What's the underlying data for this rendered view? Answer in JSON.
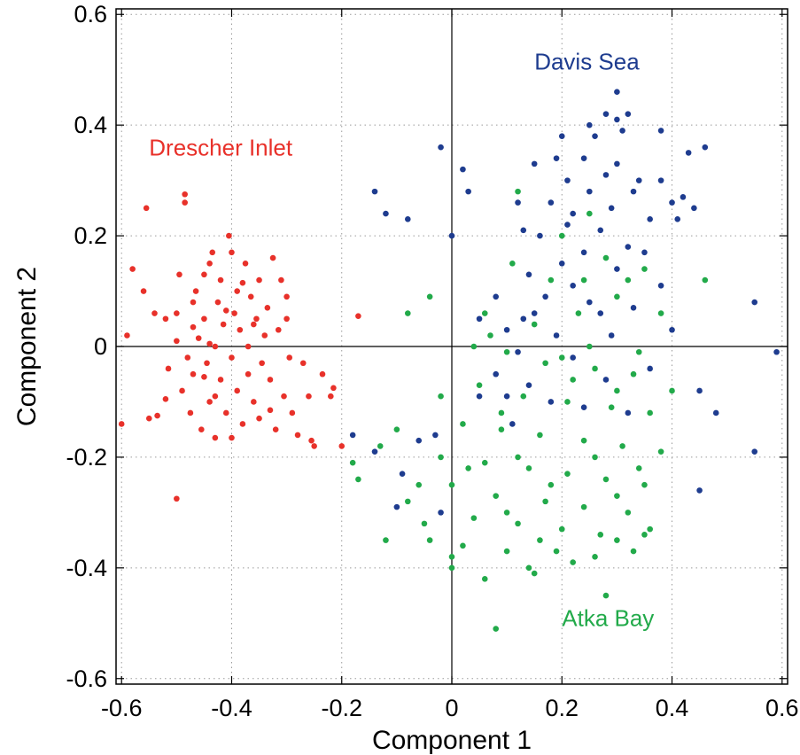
{
  "chart_data": {
    "type": "scatter",
    "xlabel": "Component 1",
    "ylabel": "Component 2",
    "xlim": [
      -0.61,
      0.61
    ],
    "ylim": [
      -0.61,
      0.61
    ],
    "x_ticks": [
      "-0.6",
      "-0.4",
      "-0.2",
      "0",
      "0.2",
      "0.4",
      "0.6"
    ],
    "y_ticks": [
      "0.6",
      "0.4",
      "0.2",
      "0",
      "-0.2",
      "-0.4",
      "-0.6"
    ],
    "x_tick_values": [
      -0.6,
      -0.4,
      -0.2,
      0,
      0.2,
      0.4,
      0.6
    ],
    "y_tick_values": [
      0.6,
      0.4,
      0.2,
      0,
      -0.2,
      -0.4,
      -0.6
    ],
    "grid": true,
    "grid_style": "dotted",
    "zero_lines": true,
    "series": [
      {
        "name": "Drescher Inlet",
        "color": "#e8312a",
        "label_pos": [
          -0.55,
          0.345
        ],
        "points": [
          [
            -0.6,
            -0.14
          ],
          [
            -0.59,
            0.02
          ],
          [
            -0.58,
            0.14
          ],
          [
            -0.56,
            0.1
          ],
          [
            -0.555,
            0.25
          ],
          [
            -0.55,
            -0.13
          ],
          [
            -0.535,
            -0.125
          ],
          [
            -0.52,
            0.05
          ],
          [
            -0.515,
            -0.04
          ],
          [
            -0.5,
            0.01
          ],
          [
            -0.5,
            0.06
          ],
          [
            -0.5,
            -0.275
          ],
          [
            -0.495,
            0.13
          ],
          [
            -0.49,
            -0.08
          ],
          [
            -0.485,
            0.275
          ],
          [
            -0.485,
            0.26
          ],
          [
            -0.48,
            -0.02
          ],
          [
            -0.475,
            -0.12
          ],
          [
            -0.47,
            0.08
          ],
          [
            -0.47,
            -0.05
          ],
          [
            -0.465,
            0.1
          ],
          [
            -0.46,
            0.015
          ],
          [
            -0.455,
            -0.15
          ],
          [
            -0.45,
            0.05
          ],
          [
            -0.45,
            0.13
          ],
          [
            -0.445,
            -0.03
          ],
          [
            -0.44,
            0.15
          ],
          [
            -0.44,
            -0.1
          ],
          [
            -0.435,
            0.17
          ],
          [
            -0.43,
            0.0
          ],
          [
            -0.43,
            -0.165
          ],
          [
            -0.425,
            0.08
          ],
          [
            -0.42,
            0.12
          ],
          [
            -0.42,
            -0.06
          ],
          [
            -0.415,
            0.04
          ],
          [
            -0.41,
            -0.12
          ],
          [
            -0.405,
            0.2
          ],
          [
            -0.4,
            0.17
          ],
          [
            -0.4,
            -0.02
          ],
          [
            -0.4,
            -0.165
          ],
          [
            -0.395,
            0.06
          ],
          [
            -0.39,
            0.1
          ],
          [
            -0.39,
            -0.08
          ],
          [
            -0.385,
            0.03
          ],
          [
            -0.38,
            -0.14
          ],
          [
            -0.375,
            0.15
          ],
          [
            -0.37,
            0.0
          ],
          [
            -0.37,
            -0.05
          ],
          [
            -0.365,
            0.09
          ],
          [
            -0.36,
            -0.1
          ],
          [
            -0.355,
            0.05
          ],
          [
            -0.35,
            0.12
          ],
          [
            -0.35,
            -0.13
          ],
          [
            -0.345,
            -0.03
          ],
          [
            -0.34,
            0.02
          ],
          [
            -0.335,
            0.07
          ],
          [
            -0.33,
            -0.06
          ],
          [
            -0.325,
            0.16
          ],
          [
            -0.32,
            -0.15
          ],
          [
            -0.315,
            0.03
          ],
          [
            -0.31,
            0.12
          ],
          [
            -0.305,
            -0.09
          ],
          [
            -0.3,
            0.09
          ],
          [
            -0.3,
            0.05
          ],
          [
            -0.295,
            -0.02
          ],
          [
            -0.29,
            -0.12
          ],
          [
            -0.28,
            -0.16
          ],
          [
            -0.27,
            -0.03
          ],
          [
            -0.26,
            -0.09
          ],
          [
            -0.255,
            -0.17
          ],
          [
            -0.25,
            -0.18
          ],
          [
            -0.235,
            -0.05
          ],
          [
            -0.22,
            -0.09
          ],
          [
            -0.215,
            -0.075
          ],
          [
            -0.2,
            -0.18
          ],
          [
            -0.17,
            0.055
          ],
          [
            -0.45,
            -0.055
          ],
          [
            -0.54,
            0.06
          ],
          [
            -0.47,
            0.035
          ],
          [
            -0.43,
            -0.09
          ],
          [
            -0.36,
            0.04
          ],
          [
            -0.44,
            0.005
          ],
          [
            -0.41,
            0.065
          ],
          [
            -0.52,
            -0.095
          ],
          [
            -0.38,
            0.115
          ],
          [
            -0.33,
            -0.115
          ]
        ]
      },
      {
        "name": "Davis Sea",
        "color": "#1e3c8f",
        "label_pos": [
          0.15,
          0.5
        ],
        "points": [
          [
            0.3,
            0.46
          ],
          [
            0.28,
            0.42
          ],
          [
            0.3,
            0.41
          ],
          [
            0.32,
            0.42
          ],
          [
            0.31,
            0.39
          ],
          [
            0.25,
            0.4
          ],
          [
            0.38,
            0.39
          ],
          [
            0.2,
            0.38
          ],
          [
            0.46,
            0.36
          ],
          [
            0.43,
            0.35
          ],
          [
            0.19,
            0.34
          ],
          [
            0.24,
            0.34
          ],
          [
            0.3,
            0.33
          ],
          [
            0.15,
            0.33
          ],
          [
            0.28,
            0.31
          ],
          [
            0.38,
            0.3
          ],
          [
            0.21,
            0.3
          ],
          [
            0.25,
            0.28
          ],
          [
            0.33,
            0.28
          ],
          [
            0.42,
            0.27
          ],
          [
            0.18,
            0.26
          ],
          [
            0.29,
            0.25
          ],
          [
            0.41,
            0.23
          ],
          [
            0.12,
            0.26
          ],
          [
            0.44,
            0.25
          ],
          [
            0.22,
            0.24
          ],
          [
            0.36,
            0.23
          ],
          [
            0.13,
            0.21
          ],
          [
            0.27,
            0.21
          ],
          [
            0.16,
            0.2
          ],
          [
            0.32,
            0.18
          ],
          [
            0.24,
            0.17
          ],
          [
            0.2,
            0.15
          ],
          [
            0.14,
            0.13
          ],
          [
            0.3,
            0.14
          ],
          [
            0.38,
            0.11
          ],
          [
            0.22,
            0.11
          ],
          [
            0.08,
            0.09
          ],
          [
            0.17,
            0.09
          ],
          [
            0.27,
            0.06
          ],
          [
            0.33,
            0.07
          ],
          [
            0.05,
            0.05
          ],
          [
            0.1,
            0.03
          ],
          [
            0.19,
            0.02
          ],
          [
            0.29,
            0.02
          ],
          [
            0.4,
            0.03
          ],
          [
            0.12,
            -0.01
          ],
          [
            0.22,
            -0.02
          ],
          [
            0.36,
            -0.04
          ],
          [
            0.08,
            -0.05
          ],
          [
            0.14,
            -0.07
          ],
          [
            0.28,
            -0.06
          ],
          [
            0.45,
            -0.08
          ],
          [
            0.18,
            -0.1
          ],
          [
            0.24,
            -0.11
          ],
          [
            0.32,
            -0.12
          ],
          [
            0.11,
            -0.14
          ],
          [
            0.48,
            -0.12
          ],
          [
            0.55,
            0.08
          ],
          [
            0.59,
            -0.01
          ],
          [
            0.55,
            -0.19
          ],
          [
            0.45,
            -0.26
          ],
          [
            -0.02,
            0.36
          ],
          [
            0.02,
            0.32
          ],
          [
            0.03,
            0.28
          ],
          [
            -0.14,
            0.28
          ],
          [
            -0.12,
            0.24
          ],
          [
            -0.08,
            0.23
          ],
          [
            0.0,
            0.2
          ],
          [
            -0.18,
            -0.16
          ],
          [
            -0.14,
            -0.19
          ],
          [
            -0.09,
            -0.23
          ],
          [
            -0.06,
            -0.17
          ],
          [
            -0.03,
            -0.16
          ],
          [
            -0.02,
            -0.3
          ],
          [
            -0.1,
            -0.29
          ],
          [
            0.05,
            -0.09
          ],
          [
            0.1,
            -0.09
          ],
          [
            0.15,
            0.06
          ],
          [
            0.25,
            0.08
          ],
          [
            0.35,
            0.17
          ],
          [
            0.4,
            0.26
          ],
          [
            0.26,
            0.38
          ],
          [
            0.13,
            0.05
          ],
          [
            0.21,
            0.22
          ],
          [
            0.34,
            0.3
          ]
        ]
      },
      {
        "name": "Atka Bay",
        "color": "#22aa4a",
        "label_pos": [
          0.2,
          -0.505
        ],
        "points": [
          [
            0.12,
            0.28
          ],
          [
            0.2,
            0.2
          ],
          [
            0.25,
            0.24
          ],
          [
            0.11,
            0.15
          ],
          [
            0.32,
            0.12
          ],
          [
            0.46,
            0.12
          ],
          [
            0.3,
            0.09
          ],
          [
            0.06,
            0.06
          ],
          [
            0.15,
            0.04
          ],
          [
            0.23,
            0.06
          ],
          [
            0.38,
            0.06
          ],
          [
            0.04,
            0.0
          ],
          [
            0.1,
            -0.01
          ],
          [
            0.2,
            -0.02
          ],
          [
            0.26,
            -0.04
          ],
          [
            0.33,
            -0.05
          ],
          [
            0.05,
            -0.07
          ],
          [
            0.13,
            -0.09
          ],
          [
            0.21,
            -0.1
          ],
          [
            0.29,
            -0.11
          ],
          [
            0.36,
            -0.12
          ],
          [
            0.02,
            -0.14
          ],
          [
            0.09,
            -0.15
          ],
          [
            0.16,
            -0.16
          ],
          [
            0.24,
            -0.17
          ],
          [
            0.31,
            -0.18
          ],
          [
            0.38,
            -0.19
          ],
          [
            0.06,
            -0.21
          ],
          [
            0.14,
            -0.22
          ],
          [
            0.21,
            -0.23
          ],
          [
            0.28,
            -0.24
          ],
          [
            0.35,
            -0.25
          ],
          [
            0.0,
            -0.25
          ],
          [
            0.08,
            -0.27
          ],
          [
            0.17,
            -0.28
          ],
          [
            0.24,
            -0.29
          ],
          [
            0.32,
            -0.3
          ],
          [
            0.04,
            -0.31
          ],
          [
            0.12,
            -0.32
          ],
          [
            0.2,
            -0.33
          ],
          [
            0.27,
            -0.34
          ],
          [
            0.36,
            -0.33
          ],
          [
            0.02,
            -0.36
          ],
          [
            0.1,
            -0.37
          ],
          [
            0.19,
            -0.37
          ],
          [
            0.26,
            -0.38
          ],
          [
            0.33,
            -0.37
          ],
          [
            0.0,
            -0.4
          ],
          [
            0.06,
            -0.42
          ],
          [
            0.15,
            -0.41
          ],
          [
            0.28,
            -0.45
          ],
          [
            0.08,
            -0.51
          ],
          [
            -0.08,
            0.06
          ],
          [
            -0.04,
            0.09
          ],
          [
            -0.02,
            -0.09
          ],
          [
            -0.1,
            -0.15
          ],
          [
            -0.13,
            -0.18
          ],
          [
            -0.18,
            -0.21
          ],
          [
            -0.17,
            -0.24
          ],
          [
            -0.06,
            -0.25
          ],
          [
            -0.08,
            -0.28
          ],
          [
            -0.05,
            -0.32
          ],
          [
            -0.12,
            -0.35
          ],
          [
            -0.04,
            -0.35
          ],
          [
            0.0,
            -0.38
          ],
          [
            0.18,
            0.12
          ],
          [
            0.28,
            0.16
          ],
          [
            0.35,
            0.14
          ],
          [
            0.22,
            -0.06
          ],
          [
            0.3,
            -0.08
          ],
          [
            0.12,
            -0.2
          ],
          [
            0.18,
            -0.25
          ],
          [
            0.26,
            -0.2
          ],
          [
            0.34,
            -0.22
          ],
          [
            0.1,
            -0.3
          ],
          [
            0.16,
            -0.35
          ],
          [
            0.3,
            -0.35
          ],
          [
            0.22,
            -0.39
          ],
          [
            0.35,
            -0.34
          ],
          [
            0.09,
            -0.12
          ],
          [
            0.03,
            -0.22
          ],
          [
            -0.02,
            -0.2
          ],
          [
            0.25,
            0.0
          ],
          [
            0.34,
            -0.01
          ],
          [
            0.4,
            -0.08
          ],
          [
            0.07,
            0.02
          ],
          [
            0.24,
            0.12
          ],
          [
            0.17,
            -0.03
          ],
          [
            0.3,
            -0.27
          ],
          [
            0.14,
            -0.4
          ]
        ]
      }
    ]
  }
}
